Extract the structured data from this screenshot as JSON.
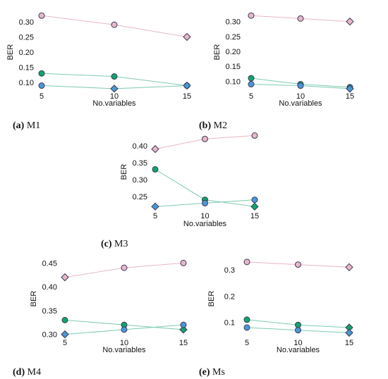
{
  "colors": {
    "pink": "#e8b7c6",
    "green": "#0fa56b",
    "blue": "#4a97d6",
    "teal_line": "#7fc9b2",
    "edge": "#3a3a5a"
  },
  "chart_data": [
    {
      "type": "line",
      "caption_letter": "(a)",
      "caption_text": "M1",
      "x": [
        5,
        10,
        15
      ],
      "xlabel": "No.variables",
      "ylabel": "BER",
      "yticks": [
        "0.10",
        "0.15",
        "0.20",
        "0.25",
        "0.30"
      ],
      "ylim": [
        0.075,
        0.325
      ],
      "series": [
        {
          "values": [
            0.32,
            0.29,
            0.25
          ],
          "color": "pink",
          "markers": [
            "circle",
            "circle",
            "diamond"
          ]
        },
        {
          "values": [
            0.13,
            0.12,
            0.09
          ],
          "color": "green",
          "markers": [
            "circle",
            "circle",
            "circle"
          ]
        },
        {
          "values": [
            0.09,
            0.08,
            0.09
          ],
          "color": "blue",
          "markers": [
            "circle",
            "diamond",
            "diamond"
          ]
        }
      ]
    },
    {
      "type": "line",
      "caption_letter": "(b)",
      "caption_text": "M2",
      "x": [
        5,
        10,
        15
      ],
      "xlabel": "No.variables",
      "ylabel": "BER",
      "yticks": [
        "0.10",
        "0.15",
        "0.20",
        "0.25",
        "0.30"
      ],
      "ylim": [
        0.07,
        0.325
      ],
      "series": [
        {
          "values": [
            0.32,
            0.31,
            0.3
          ],
          "color": "pink",
          "markers": [
            "circle",
            "circle",
            "diamond"
          ]
        },
        {
          "values": [
            0.11,
            0.09,
            0.08
          ],
          "color": "green",
          "markers": [
            "circle",
            "circle",
            "circle"
          ]
        },
        {
          "values": [
            0.09,
            0.085,
            0.075
          ],
          "color": "blue",
          "markers": [
            "circle",
            "circle",
            "diamond"
          ]
        }
      ]
    },
    {
      "type": "line",
      "caption_letter": "(c)",
      "caption_text": "M3",
      "x": [
        5,
        10,
        15
      ],
      "xlabel": "No.variables",
      "ylabel": "BER",
      "yticks": [
        "0.25",
        "0.30",
        "0.35",
        "0.40"
      ],
      "ylim": [
        0.21,
        0.435
      ],
      "series": [
        {
          "values": [
            0.39,
            0.42,
            0.43
          ],
          "color": "pink",
          "markers": [
            "diamond",
            "circle",
            "circle"
          ]
        },
        {
          "values": [
            0.33,
            0.24,
            0.22
          ],
          "color": "green",
          "markers": [
            "circle",
            "circle",
            "diamond"
          ]
        },
        {
          "values": [
            0.22,
            0.23,
            0.24
          ],
          "color": "blue",
          "markers": [
            "diamond",
            "circle",
            "circle"
          ]
        }
      ]
    },
    {
      "type": "line",
      "caption_letter": "(d)",
      "caption_text": "M4",
      "x": [
        5,
        10,
        15
      ],
      "xlabel": "No.variables",
      "ylabel": "BER",
      "yticks": [
        "0.30",
        "0.35",
        "0.40",
        "0.45"
      ],
      "ylim": [
        0.295,
        0.455
      ],
      "series": [
        {
          "values": [
            0.42,
            0.44,
            0.45
          ],
          "color": "pink",
          "markers": [
            "diamond",
            "circle",
            "circle"
          ]
        },
        {
          "values": [
            0.33,
            0.32,
            0.31
          ],
          "color": "green",
          "markers": [
            "circle",
            "circle",
            "diamond"
          ]
        },
        {
          "values": [
            0.3,
            0.31,
            0.32
          ],
          "color": "blue",
          "markers": [
            "diamond",
            "circle",
            "circle"
          ]
        }
      ]
    },
    {
      "type": "line",
      "caption_letter": "(e)",
      "caption_text": "Ms",
      "x": [
        5,
        10,
        15
      ],
      "xlabel": "No.variables",
      "ylabel": "BER",
      "yticks": [
        "0.1",
        "0.2",
        "0.3"
      ],
      "ylim": [
        0.045,
        0.335
      ],
      "series": [
        {
          "values": [
            0.33,
            0.32,
            0.31
          ],
          "color": "pink",
          "markers": [
            "circle",
            "circle",
            "diamond"
          ]
        },
        {
          "values": [
            0.11,
            0.09,
            0.08
          ],
          "color": "green",
          "markers": [
            "circle",
            "circle",
            "diamond"
          ]
        },
        {
          "values": [
            0.08,
            0.07,
            0.06
          ],
          "color": "blue",
          "markers": [
            "circle",
            "circle",
            "diamond"
          ]
        }
      ]
    }
  ]
}
